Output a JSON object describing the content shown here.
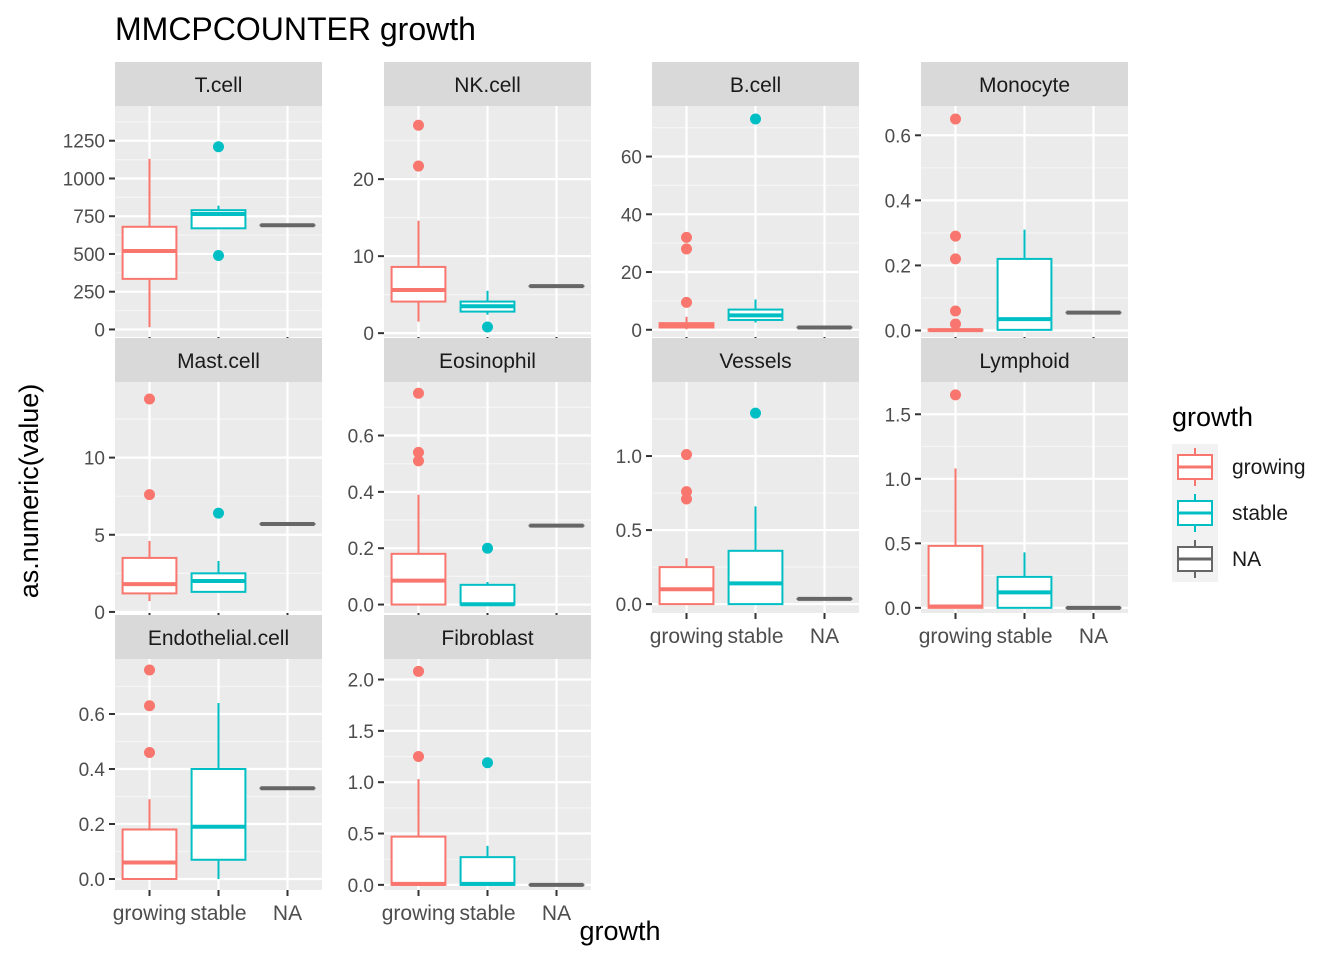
{
  "chart_data": {
    "type": "boxplot",
    "title": "MMCPCOUNTER growth",
    "xlabel": "growth",
    "ylabel": "as.numeric(value)",
    "grid": true,
    "legend": {
      "title": "growth",
      "position": "right",
      "entries": [
        {
          "label": "growing",
          "color": "#F8766D"
        },
        {
          "label": "stable",
          "color": "#00BFC4"
        },
        {
          "label": "NA",
          "color": "#666666"
        }
      ]
    },
    "categories": [
      "growing",
      "stable",
      "NA"
    ],
    "panels": [
      {
        "strip": "T.cell",
        "ylim": [
          -50,
          1480
        ],
        "ticks": [
          0,
          250,
          500,
          750,
          1000,
          1250
        ],
        "tick_labels": [
          "0",
          "250",
          "500",
          "750",
          "1000",
          "1250"
        ],
        "boxes": [
          {
            "group": "growing",
            "min": 15,
            "q1": 335,
            "median": 520,
            "q3": 680,
            "max": 1130,
            "outliers": []
          },
          {
            "group": "stable",
            "min": 670,
            "q1": 670,
            "median": 765,
            "q3": 790,
            "max": 820,
            "outliers": [
              1210,
              490
            ]
          },
          {
            "group": "NA",
            "min": 690,
            "q1": 690,
            "median": 690,
            "q3": 690,
            "max": 690,
            "outliers": []
          }
        ]
      },
      {
        "strip": "NK.cell",
        "ylim": [
          -0.5,
          29.5
        ],
        "ticks": [
          0,
          10,
          20
        ],
        "tick_labels": [
          "0",
          "10",
          "20"
        ],
        "boxes": [
          {
            "group": "growing",
            "min": 1.5,
            "q1": 4.1,
            "median": 5.6,
            "q3": 8.6,
            "max": 14.6,
            "outliers": [
              27.0,
              21.7
            ]
          },
          {
            "group": "stable",
            "min": 2.4,
            "q1": 2.8,
            "median": 3.5,
            "q3": 4.1,
            "max": 5.5,
            "outliers": [
              0.8
            ]
          },
          {
            "group": "NA",
            "min": 6.1,
            "q1": 6.1,
            "median": 6.1,
            "q3": 6.1,
            "max": 6.1,
            "outliers": []
          }
        ]
      },
      {
        "strip": "B.cell",
        "ylim": [
          -2.5,
          77.5
        ],
        "ticks": [
          0,
          20,
          40,
          60
        ],
        "tick_labels": [
          "0",
          "20",
          "40",
          "60"
        ],
        "boxes": [
          {
            "group": "growing",
            "min": 0.2,
            "q1": 0.8,
            "median": 1.5,
            "q3": 2.3,
            "max": 4.5,
            "outliers": [
              32,
              28,
              9.5
            ]
          },
          {
            "group": "stable",
            "min": 2.5,
            "q1": 3.4,
            "median": 5.0,
            "q3": 7.0,
            "max": 10.5,
            "outliers": [
              73
            ]
          },
          {
            "group": "NA",
            "min": 0.8,
            "q1": 0.8,
            "median": 0.8,
            "q3": 0.8,
            "max": 0.8,
            "outliers": []
          }
        ]
      },
      {
        "strip": "Monocyte",
        "ylim": [
          -0.02,
          0.69
        ],
        "ticks": [
          0,
          0.2,
          0.4,
          0.6
        ],
        "tick_labels": [
          "0.0",
          "0.2",
          "0.4",
          "0.6"
        ],
        "boxes": [
          {
            "group": "growing",
            "min": 0,
            "q1": 0,
            "median": 0.001,
            "q3": 0.003,
            "max": 0.008,
            "outliers": [
              0.65,
              0.29,
              0.22,
              0.06,
              0.02
            ]
          },
          {
            "group": "stable",
            "min": 0,
            "q1": 0.002,
            "median": 0.035,
            "q3": 0.22,
            "max": 0.31,
            "outliers": []
          },
          {
            "group": "NA",
            "min": 0.055,
            "q1": 0.055,
            "median": 0.055,
            "q3": 0.055,
            "max": 0.055,
            "outliers": []
          }
        ]
      },
      {
        "strip": "Mast.cell",
        "ylim": [
          -0.07,
          14.9
        ],
        "ticks": [
          0,
          5,
          10
        ],
        "tick_labels": [
          "0",
          "5",
          "10"
        ],
        "boxes": [
          {
            "group": "growing",
            "min": 0.7,
            "q1": 1.2,
            "median": 1.8,
            "q3": 3.5,
            "max": 4.6,
            "outliers": [
              13.8,
              7.6
            ]
          },
          {
            "group": "stable",
            "min": 1.3,
            "q1": 1.3,
            "median": 2.0,
            "q3": 2.5,
            "max": 3.3,
            "outliers": [
              6.4
            ]
          },
          {
            "group": "NA",
            "min": 5.7,
            "q1": 5.7,
            "median": 5.7,
            "q3": 5.7,
            "max": 5.7,
            "outliers": []
          }
        ]
      },
      {
        "strip": "Eosinophil",
        "ylim": [
          -0.03,
          0.79
        ],
        "ticks": [
          0,
          0.2,
          0.4,
          0.6
        ],
        "tick_labels": [
          "0.0",
          "0.2",
          "0.4",
          "0.6"
        ],
        "boxes": [
          {
            "group": "growing",
            "min": 0,
            "q1": 0,
            "median": 0.085,
            "q3": 0.18,
            "max": 0.39,
            "outliers": [
              0.75,
              0.54,
              0.51
            ]
          },
          {
            "group": "stable",
            "min": 0,
            "q1": 0,
            "median": 0.001,
            "q3": 0.07,
            "max": 0.08,
            "outliers": [
              0.2
            ]
          },
          {
            "group": "NA",
            "min": 0.28,
            "q1": 0.28,
            "median": 0.28,
            "q3": 0.28,
            "max": 0.28,
            "outliers": []
          }
        ]
      },
      {
        "strip": "Vessels",
        "ylim": [
          -0.06,
          1.5
        ],
        "ticks": [
          0,
          0.5,
          1.0
        ],
        "tick_labels": [
          "0.0",
          "0.5",
          "1.0"
        ],
        "boxes": [
          {
            "group": "growing",
            "min": 0,
            "q1": 0,
            "median": 0.1,
            "q3": 0.25,
            "max": 0.31,
            "outliers": [
              1.01,
              0.76,
              0.71
            ]
          },
          {
            "group": "stable",
            "min": 0,
            "q1": 0,
            "median": 0.14,
            "q3": 0.36,
            "max": 0.66,
            "outliers": [
              1.29
            ]
          },
          {
            "group": "NA",
            "min": 0.035,
            "q1": 0.035,
            "median": 0.035,
            "q3": 0.035,
            "max": 0.035,
            "outliers": []
          }
        ]
      },
      {
        "strip": "Lymphoid",
        "ylim": [
          -0.04,
          1.75
        ],
        "ticks": [
          0,
          0.5,
          1.0,
          1.5
        ],
        "tick_labels": [
          "0.0",
          "0.5",
          "1.0",
          "1.5"
        ],
        "boxes": [
          {
            "group": "growing",
            "min": 0,
            "q1": 0,
            "median": 0.01,
            "q3": 0.48,
            "max": 1.08,
            "outliers": [
              1.65
            ]
          },
          {
            "group": "stable",
            "min": 0,
            "q1": 0,
            "median": 0.12,
            "q3": 0.24,
            "max": 0.43,
            "outliers": []
          },
          {
            "group": "NA",
            "min": 0,
            "q1": 0,
            "median": 0,
            "q3": 0,
            "max": 0,
            "outliers": []
          }
        ]
      },
      {
        "strip": "Endothelial.cell",
        "ylim": [
          -0.04,
          0.8
        ],
        "ticks": [
          0,
          0.2,
          0.4,
          0.6
        ],
        "tick_labels": [
          "0.0",
          "0.2",
          "0.4",
          "0.6"
        ],
        "boxes": [
          {
            "group": "growing",
            "min": 0,
            "q1": 0,
            "median": 0.06,
            "q3": 0.18,
            "max": 0.29,
            "outliers": [
              0.76,
              0.63,
              0.46
            ]
          },
          {
            "group": "stable",
            "min": 0,
            "q1": 0.07,
            "median": 0.19,
            "q3": 0.4,
            "max": 0.64,
            "outliers": []
          },
          {
            "group": "NA",
            "min": 0.33,
            "q1": 0.33,
            "median": 0.33,
            "q3": 0.33,
            "max": 0.33,
            "outliers": []
          }
        ]
      },
      {
        "strip": "Fibroblast",
        "ylim": [
          -0.05,
          2.2
        ],
        "ticks": [
          0,
          0.5,
          1.0,
          1.5,
          2.0
        ],
        "tick_labels": [
          "0.0",
          "0.5",
          "1.0",
          "1.5",
          "2.0"
        ],
        "boxes": [
          {
            "group": "growing",
            "min": 0,
            "q1": 0,
            "median": 0.01,
            "q3": 0.47,
            "max": 1.03,
            "outliers": [
              2.08,
              1.25
            ]
          },
          {
            "group": "stable",
            "min": 0,
            "q1": 0,
            "median": 0.01,
            "q3": 0.27,
            "max": 0.38,
            "outliers": [
              1.19
            ]
          },
          {
            "group": "NA",
            "min": 0,
            "q1": 0,
            "median": 0,
            "q3": 0,
            "max": 0,
            "outliers": []
          }
        ]
      }
    ]
  }
}
